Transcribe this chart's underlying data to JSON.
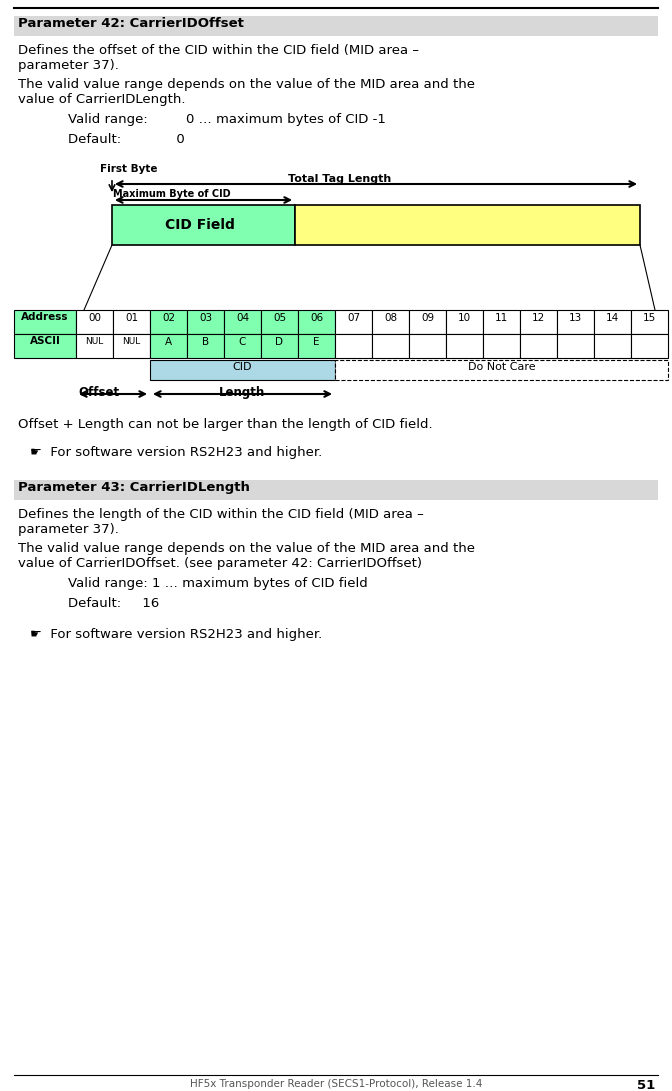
{
  "bg_color": "#ffffff",
  "page_width": 6.72,
  "page_height": 10.91,
  "param42_header": "Parameter 42: CarrierIDOffset",
  "param42_header_bg": "#d8d8d8",
  "param43_header": "Parameter 43: CarrierIDLength",
  "param43_header_bg": "#d8d8d8",
  "offset_note": "☛  For software version RS2H23 and higher.",
  "footer_text": "HF5x Transponder Reader (SECS1-Protocol), Release 1.4",
  "footer_page": "51",
  "addr_labels": [
    "00",
    "01",
    "02",
    "03",
    "04",
    "05",
    "06",
    "07",
    "08",
    "09",
    "10",
    "11",
    "12",
    "13",
    "14",
    "15"
  ],
  "ascii_labels": [
    "NUL",
    "NUL",
    "A",
    "B",
    "C",
    "D",
    "E",
    "",
    "",
    "",
    "",
    "",
    "",
    "",
    "",
    ""
  ],
  "green_cells": [
    2,
    3,
    4,
    5,
    6
  ],
  "cid_color": "#80ffb0",
  "yellow_color": "#ffff80",
  "blue_cid_color": "#add8e6",
  "header_color": "#80ffb0"
}
